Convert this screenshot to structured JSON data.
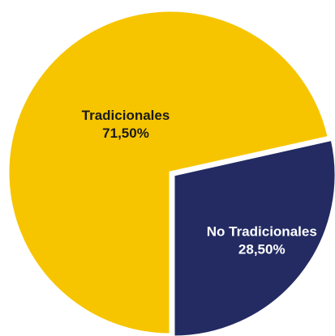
{
  "chart_data": {
    "type": "pie",
    "title": "",
    "slices": [
      {
        "name": "Tradicionales",
        "value": 71.5,
        "value_label": "71,50%",
        "color": "#F6C500",
        "label_color": "#1a1a1a",
        "exploded": false
      },
      {
        "name": "No Tradicionales",
        "value": 28.5,
        "value_label": "28,50%",
        "color": "#232B62",
        "label_color": "#ffffff",
        "exploded": true
      }
    ],
    "border_color": "#ffffff",
    "start": "twelve-o'clock, slices drawn clockwise ending with the exploded slice",
    "legend": "none"
  }
}
